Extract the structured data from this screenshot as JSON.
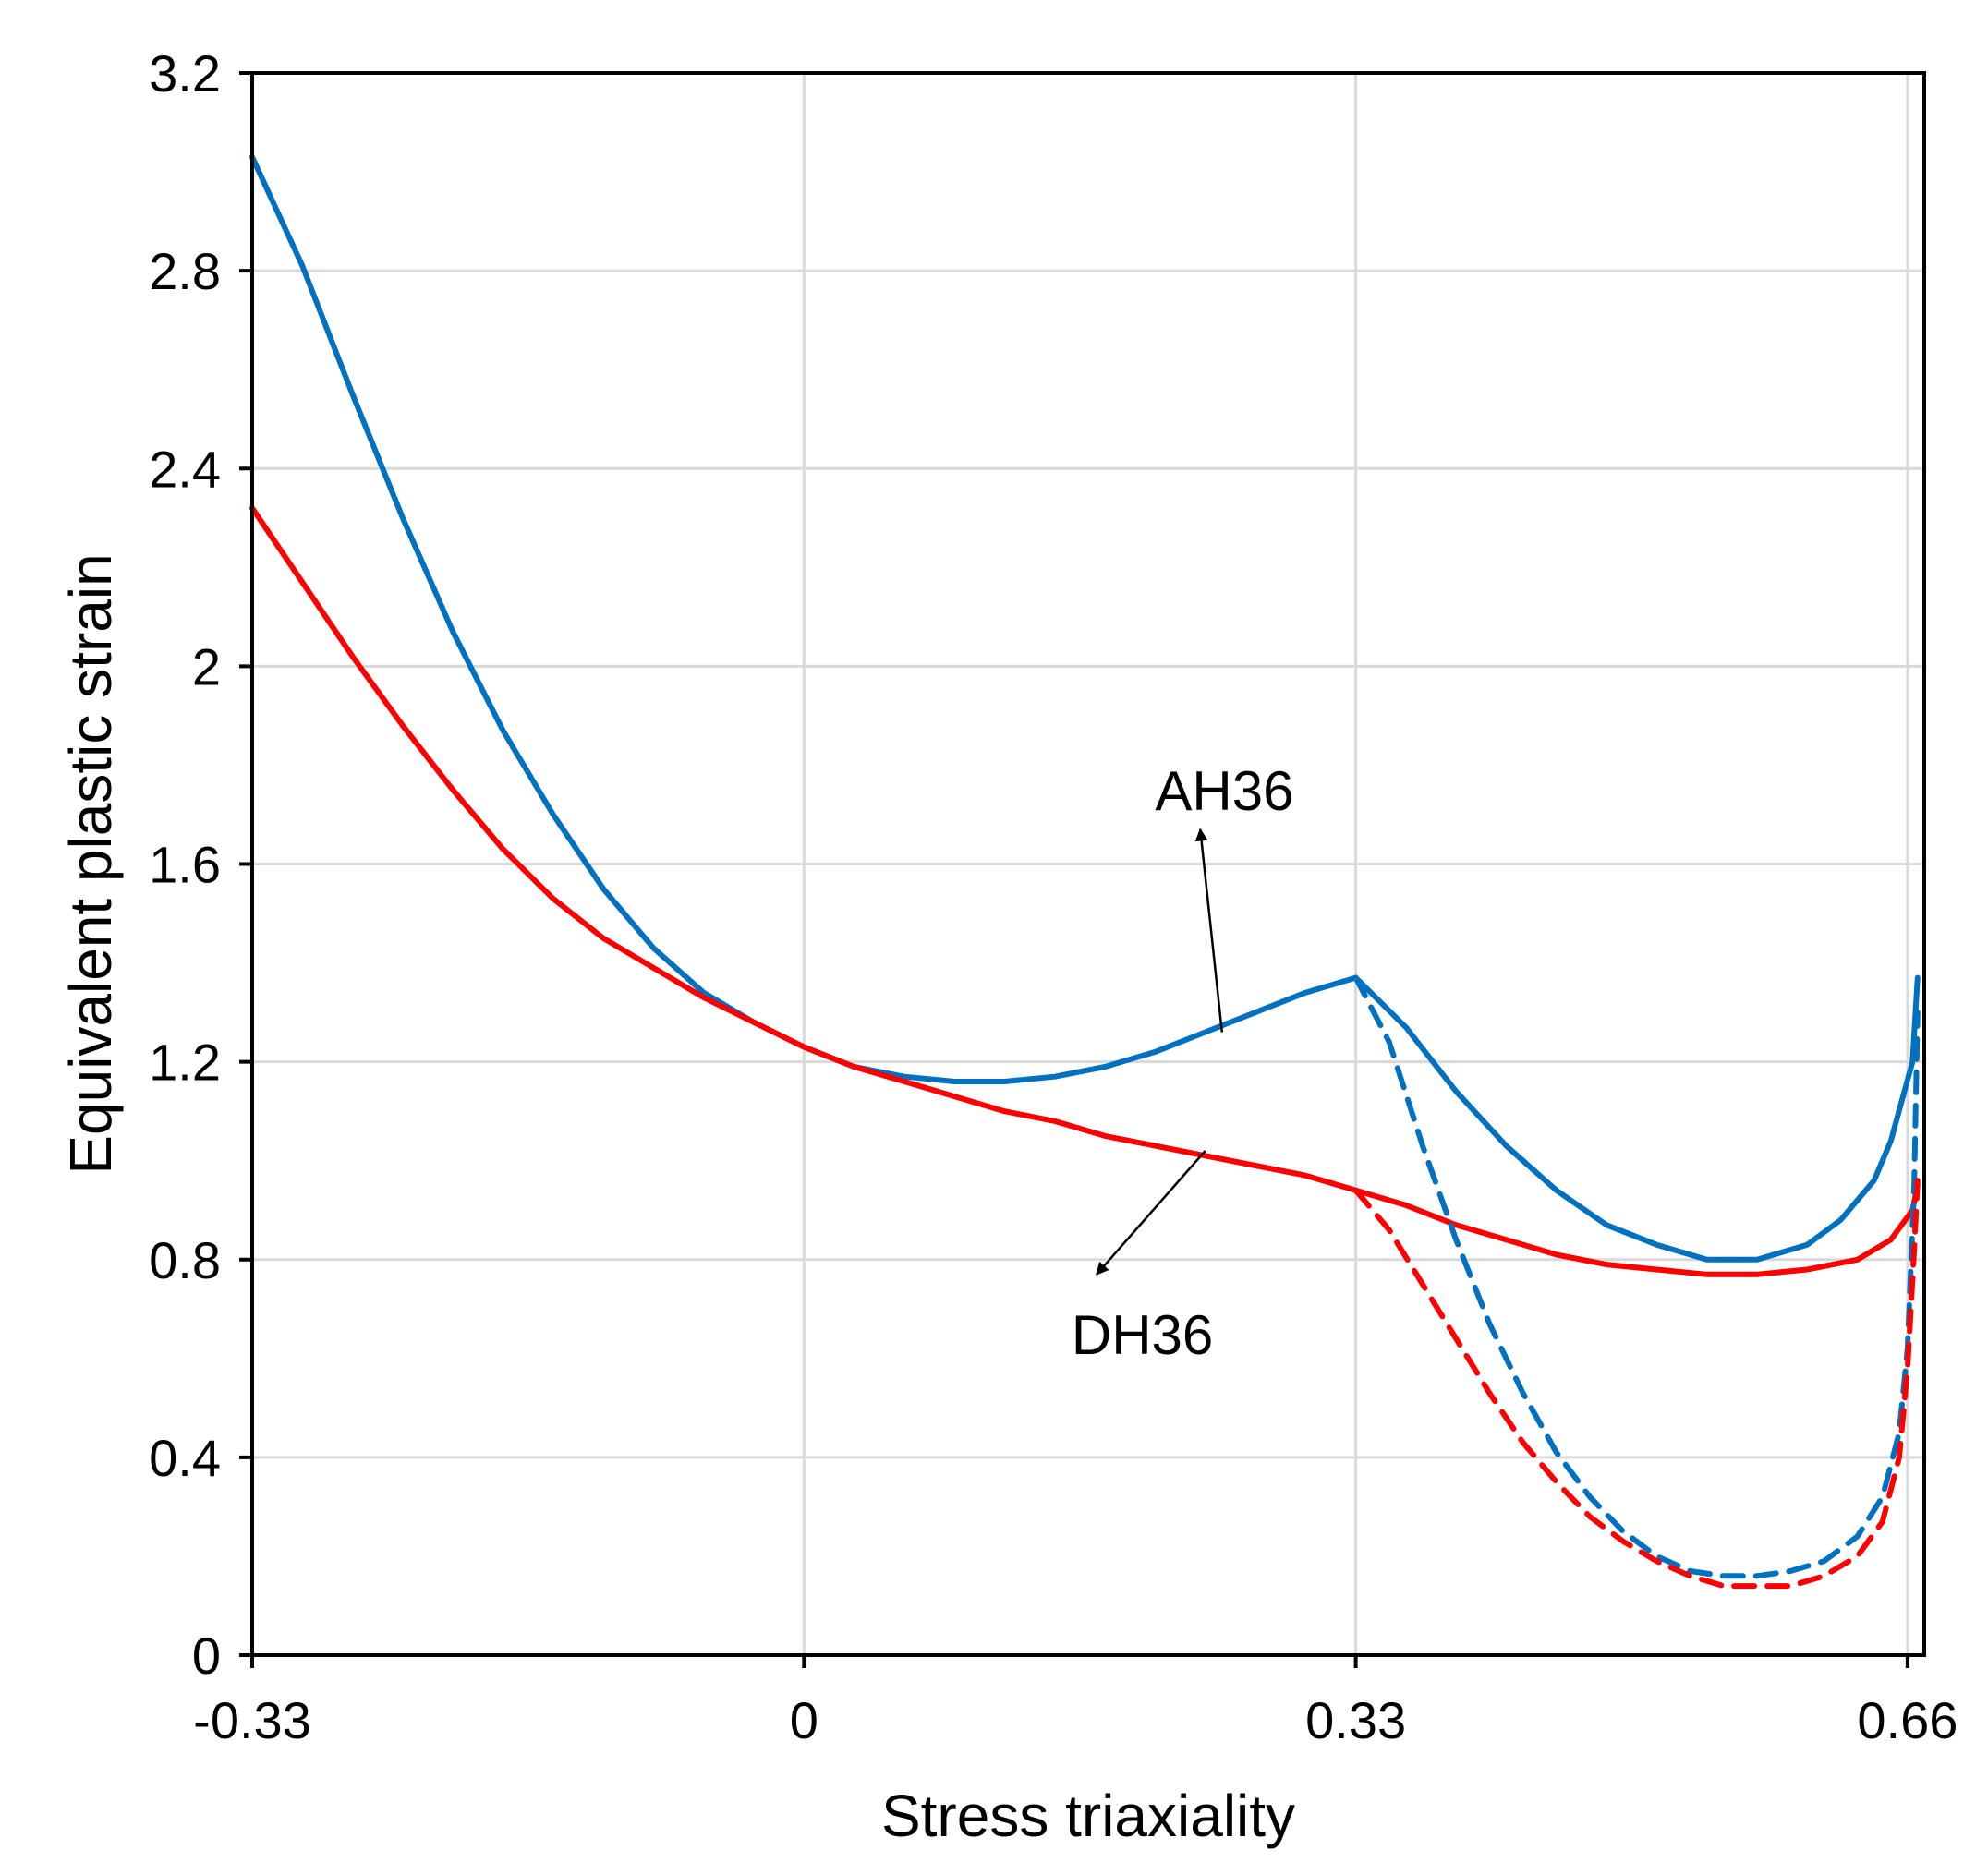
{
  "chart_data": {
    "type": "line",
    "title": "",
    "xlabel": "Stress triaxiality",
    "ylabel": "Equivalent plastic strain",
    "xlim": [
      -0.33,
      0.67
    ],
    "ylim": [
      0,
      3.2
    ],
    "x_ticks": [
      -0.33,
      0,
      0.33,
      0.66
    ],
    "x_tick_labels": [
      "-0.33",
      "0",
      "0.33",
      "0.66"
    ],
    "y_ticks": [
      0,
      0.4,
      0.8,
      1.2,
      1.6,
      2,
      2.4,
      2.8,
      3.2
    ],
    "y_tick_labels": [
      "0",
      "0.4",
      "0.8",
      "1.2",
      "1.6",
      "2",
      "2.4",
      "2.8",
      "3.2"
    ],
    "grid": true,
    "colors": {
      "AH36": "#0070c0",
      "DH36": "#ff0000",
      "frame": "#000000",
      "grid": "#d9d9d9"
    },
    "annotations": [
      {
        "label": "AH36",
        "series": "AH36",
        "text_at": [
          0.21,
          1.75
        ],
        "arrow_from": [
          0.25,
          1.26
        ],
        "arrow_to": [
          0.237,
          1.67
        ]
      },
      {
        "label": "DH36",
        "series": "DH36",
        "text_at": [
          0.16,
          0.65
        ],
        "arrow_from": [
          0.24,
          1.02
        ],
        "arrow_to": [
          0.175,
          0.77
        ]
      }
    ],
    "series": [
      {
        "key": "AH36",
        "style": "solid",
        "color": "#0070c0",
        "x": [
          -0.33,
          -0.3,
          -0.27,
          -0.24,
          -0.21,
          -0.18,
          -0.15,
          -0.12,
          -0.09,
          -0.06,
          -0.03,
          0.0,
          0.03,
          0.06,
          0.09,
          0.12,
          0.15,
          0.18,
          0.21,
          0.24,
          0.27,
          0.3,
          0.33,
          0.36,
          0.39,
          0.42,
          0.45,
          0.48,
          0.51,
          0.54,
          0.57,
          0.6,
          0.62,
          0.64,
          0.65,
          0.663,
          0.666
        ],
        "y": [
          3.03,
          2.81,
          2.55,
          2.3,
          2.07,
          1.87,
          1.7,
          1.55,
          1.43,
          1.34,
          1.28,
          1.23,
          1.19,
          1.17,
          1.16,
          1.16,
          1.17,
          1.19,
          1.22,
          1.26,
          1.3,
          1.34,
          1.37,
          1.27,
          1.14,
          1.03,
          0.94,
          0.87,
          0.83,
          0.8,
          0.8,
          0.83,
          0.88,
          0.96,
          1.04,
          1.2,
          1.37
        ]
      },
      {
        "key": "DH36",
        "style": "solid",
        "color": "#ff0000",
        "x": [
          -0.33,
          -0.3,
          -0.27,
          -0.24,
          -0.21,
          -0.18,
          -0.15,
          -0.12,
          -0.09,
          -0.06,
          -0.03,
          0.0,
          0.03,
          0.06,
          0.09,
          0.12,
          0.15,
          0.18,
          0.21,
          0.24,
          0.27,
          0.3,
          0.33,
          0.36,
          0.39,
          0.42,
          0.45,
          0.48,
          0.51,
          0.54,
          0.57,
          0.6,
          0.63,
          0.65,
          0.663,
          0.666
        ],
        "y": [
          2.32,
          2.17,
          2.02,
          1.88,
          1.75,
          1.63,
          1.53,
          1.45,
          1.39,
          1.33,
          1.28,
          1.23,
          1.19,
          1.16,
          1.13,
          1.1,
          1.08,
          1.05,
          1.03,
          1.01,
          0.99,
          0.97,
          0.94,
          0.91,
          0.87,
          0.84,
          0.81,
          0.79,
          0.78,
          0.77,
          0.77,
          0.78,
          0.8,
          0.84,
          0.9,
          0.95
        ]
      },
      {
        "key": "AH36 (dashed)",
        "style": "dashed",
        "color": "#0070c0",
        "x": [
          0.33,
          0.35,
          0.37,
          0.39,
          0.41,
          0.43,
          0.45,
          0.47,
          0.49,
          0.51,
          0.53,
          0.55,
          0.57,
          0.59,
          0.61,
          0.63,
          0.645,
          0.655,
          0.66,
          0.664,
          0.666
        ],
        "y": [
          1.37,
          1.24,
          1.03,
          0.84,
          0.67,
          0.53,
          0.41,
          0.32,
          0.25,
          0.2,
          0.17,
          0.16,
          0.16,
          0.17,
          0.19,
          0.24,
          0.32,
          0.45,
          0.62,
          0.95,
          1.3
        ]
      },
      {
        "key": "DH36 (dashed)",
        "style": "dashed",
        "color": "#ff0000",
        "x": [
          0.33,
          0.35,
          0.37,
          0.39,
          0.41,
          0.43,
          0.45,
          0.47,
          0.49,
          0.51,
          0.53,
          0.55,
          0.57,
          0.59,
          0.61,
          0.63,
          0.645,
          0.655,
          0.66,
          0.664,
          0.666
        ],
        "y": [
          0.94,
          0.86,
          0.75,
          0.64,
          0.53,
          0.43,
          0.35,
          0.28,
          0.23,
          0.19,
          0.16,
          0.14,
          0.14,
          0.14,
          0.16,
          0.2,
          0.27,
          0.4,
          0.58,
          0.82,
          0.96
        ]
      }
    ]
  }
}
